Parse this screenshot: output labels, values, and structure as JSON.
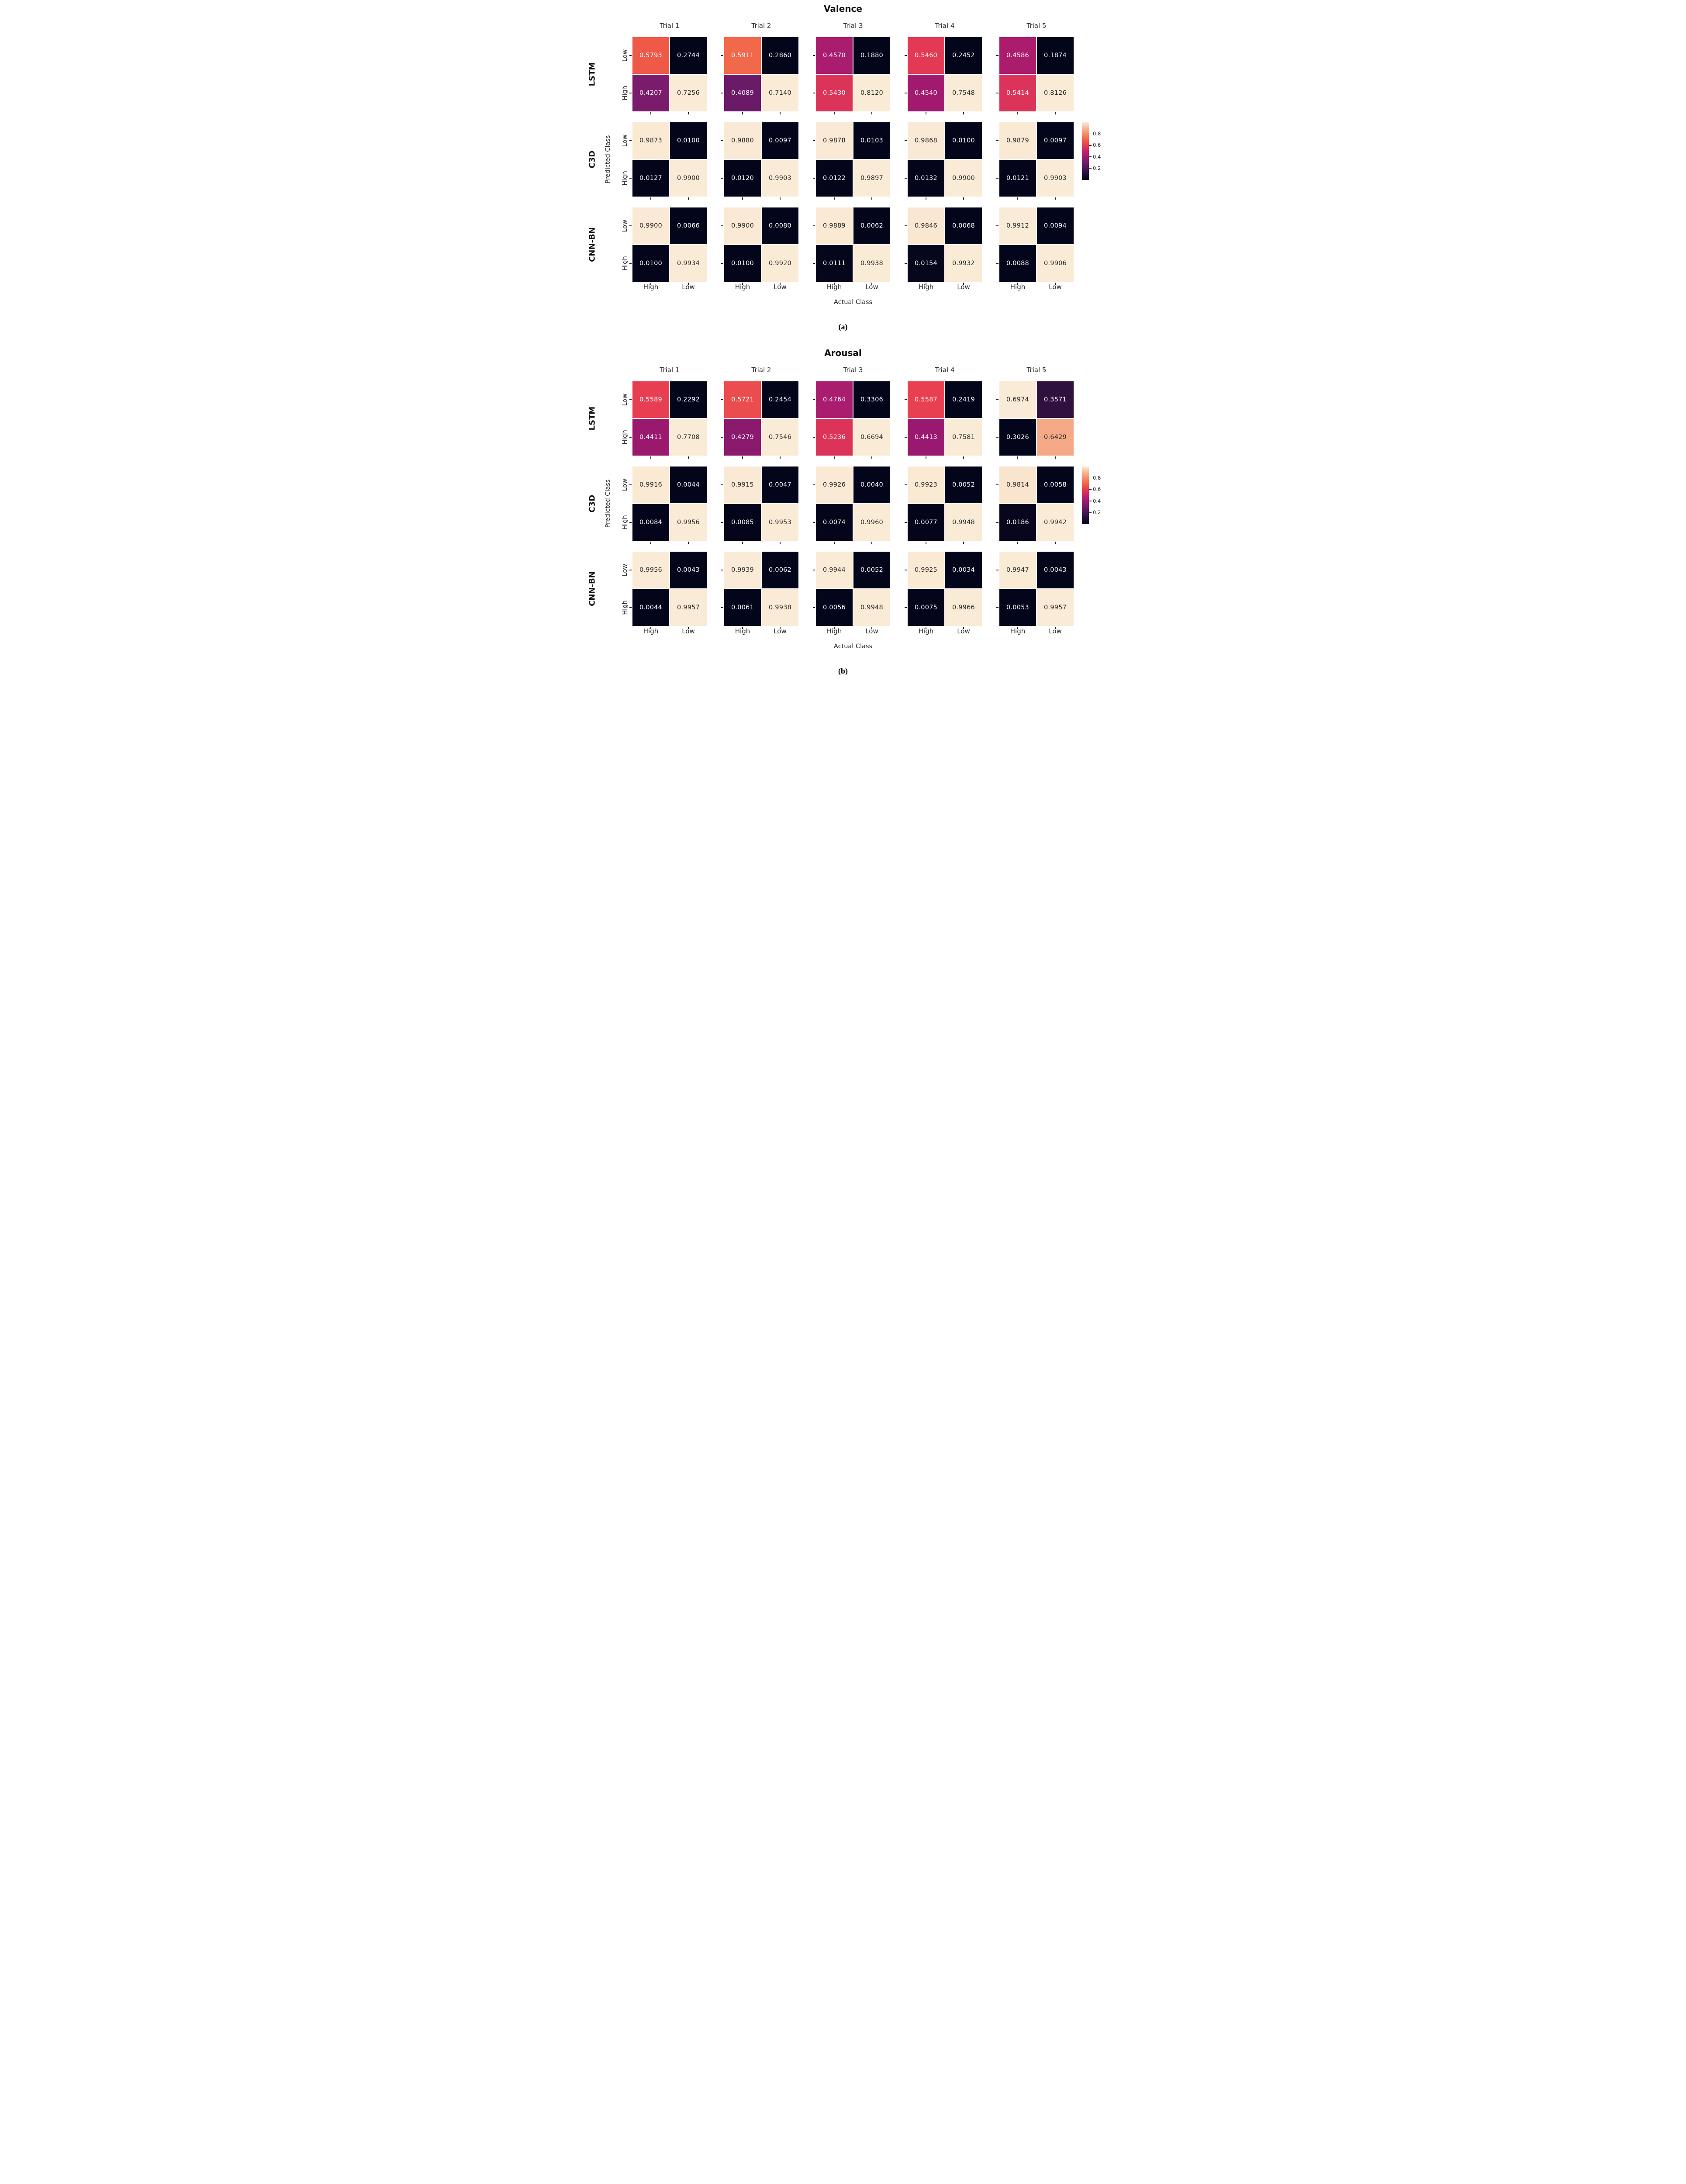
{
  "figure": {
    "background": "#ffffff",
    "colors": {
      "cmap_name": "rocket",
      "cmap_stops": [
        "#03051A",
        "#220D31",
        "#481557",
        "#701B6A",
        "#9E1970",
        "#C62368",
        "#E63B52",
        "#F26345",
        "#F48D6B",
        "#F5BA97",
        "#FAEBD6"
      ],
      "annot_dark_text": "#262626",
      "annot_light_text": "#ffffff",
      "axis_text": "#262626",
      "title_text": "#111111"
    }
  },
  "chart_data": [
    {
      "type": "heatmap",
      "title": "Valence",
      "caption": "(a)",
      "row_models": [
        "LSTM",
        "C3D",
        "CNN-BN"
      ],
      "col_trials": [
        "Trial 1",
        "Trial 2",
        "Trial 3",
        "Trial 4",
        "Trial 5"
      ],
      "ylabel": "Predicted Class",
      "xlabel": "Actual Class",
      "ytick_labels": [
        "Low",
        "High"
      ],
      "xtick_labels": [
        "High",
        "Low"
      ],
      "colorbar_ticks": [
        0.8,
        0.6,
        0.4,
        0.2
      ],
      "cells": [
        [
          [
            [
              0.5793,
              0.2744
            ],
            [
              0.4207,
              0.7256
            ]
          ],
          [
            [
              0.5911,
              0.286
            ],
            [
              0.4089,
              0.714
            ]
          ],
          [
            [
              0.457,
              0.188
            ],
            [
              0.543,
              0.812
            ]
          ],
          [
            [
              0.546,
              0.2452
            ],
            [
              0.454,
              0.7548
            ]
          ],
          [
            [
              0.4586,
              0.1874
            ],
            [
              0.5414,
              0.8126
            ]
          ]
        ],
        [
          [
            [
              0.9873,
              0.01
            ],
            [
              0.0127,
              0.99
            ]
          ],
          [
            [
              0.988,
              0.0097
            ],
            [
              0.012,
              0.9903
            ]
          ],
          [
            [
              0.9878,
              0.0103
            ],
            [
              0.0122,
              0.9897
            ]
          ],
          [
            [
              0.9868,
              0.01
            ],
            [
              0.0132,
              0.99
            ]
          ],
          [
            [
              0.9879,
              0.0097
            ],
            [
              0.0121,
              0.9903
            ]
          ]
        ],
        [
          [
            [
              0.99,
              0.0066
            ],
            [
              0.01,
              0.9934
            ]
          ],
          [
            [
              0.99,
              0.008
            ],
            [
              0.01,
              0.992
            ]
          ],
          [
            [
              0.9889,
              0.0062
            ],
            [
              0.0111,
              0.9938
            ]
          ],
          [
            [
              0.9846,
              0.0068
            ],
            [
              0.0154,
              0.9932
            ]
          ],
          [
            [
              0.9912,
              0.0094
            ],
            [
              0.0088,
              0.9906
            ]
          ]
        ]
      ]
    },
    {
      "type": "heatmap",
      "title": "Arousal",
      "caption": "(b)",
      "row_models": [
        "LSTM",
        "C3D",
        "CNN-BN"
      ],
      "col_trials": [
        "Trial 1",
        "Trial 2",
        "Trial 3",
        "Trial 4",
        "Trial 5"
      ],
      "ylabel": "Predicted Class",
      "xlabel": "Actual Class",
      "ytick_labels": [
        "Low",
        "High"
      ],
      "xtick_labels": [
        "High",
        "Low"
      ],
      "colorbar_ticks": [
        0.8,
        0.6,
        0.4,
        0.2
      ],
      "cells": [
        [
          [
            [
              0.5589,
              0.2292
            ],
            [
              0.4411,
              0.7708
            ]
          ],
          [
            [
              0.5721,
              0.2454
            ],
            [
              0.4279,
              0.7546
            ]
          ],
          [
            [
              0.4764,
              0.3306
            ],
            [
              0.5236,
              0.6694
            ]
          ],
          [
            [
              0.5587,
              0.2419
            ],
            [
              0.4413,
              0.7581
            ]
          ],
          [
            [
              0.6974,
              0.3571
            ],
            [
              0.3026,
              0.6429
            ]
          ]
        ],
        [
          [
            [
              0.9916,
              0.0044
            ],
            [
              0.0084,
              0.9956
            ]
          ],
          [
            [
              0.9915,
              0.0047
            ],
            [
              0.0085,
              0.9953
            ]
          ],
          [
            [
              0.9926,
              0.004
            ],
            [
              0.0074,
              0.996
            ]
          ],
          [
            [
              0.9923,
              0.0052
            ],
            [
              0.0077,
              0.9948
            ]
          ],
          [
            [
              0.9814,
              0.0058
            ],
            [
              0.0186,
              0.9942
            ]
          ]
        ],
        [
          [
            [
              0.9956,
              0.0043
            ],
            [
              0.0044,
              0.9957
            ]
          ],
          [
            [
              0.9939,
              0.0062
            ],
            [
              0.0061,
              0.9938
            ]
          ],
          [
            [
              0.9944,
              0.0052
            ],
            [
              0.0056,
              0.9948
            ]
          ],
          [
            [
              0.9925,
              0.0034
            ],
            [
              0.0075,
              0.9966
            ]
          ],
          [
            [
              0.9947,
              0.0043
            ],
            [
              0.0053,
              0.9957
            ]
          ]
        ]
      ]
    }
  ]
}
